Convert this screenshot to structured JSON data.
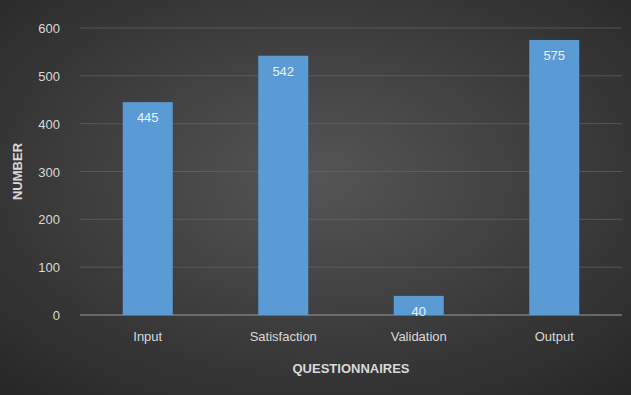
{
  "chart_data": {
    "type": "bar",
    "x_label": "QUESTIONNAIRES",
    "y_label": "NUMBER",
    "categories": [
      "Input",
      "Satisfaction",
      "Validation",
      "Output"
    ],
    "values": [
      445,
      542,
      40,
      575
    ],
    "color": "#5b9bd5",
    "ylim": [
      0,
      600
    ],
    "yticks": [
      0,
      100,
      200,
      300,
      400,
      500,
      600
    ],
    "grid": true,
    "data_labels": true
  }
}
